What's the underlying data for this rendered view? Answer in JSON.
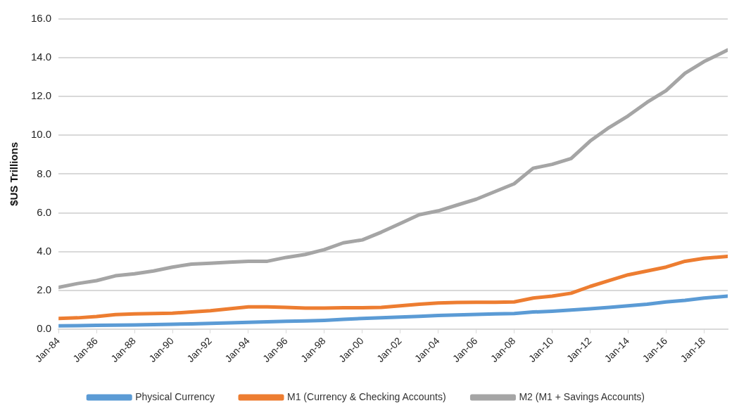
{
  "chart_data": {
    "type": "line",
    "ylabel": "$US Trillions",
    "x": [
      "1984-01",
      "1985-01",
      "1986-01",
      "1987-01",
      "1988-01",
      "1989-01",
      "1990-01",
      "1991-01",
      "1992-01",
      "1993-01",
      "1994-01",
      "1995-01",
      "1996-01",
      "1997-01",
      "1998-01",
      "1999-01",
      "2000-01",
      "2001-01",
      "2002-01",
      "2003-01",
      "2004-01",
      "2005-01",
      "2006-01",
      "2007-01",
      "2008-01",
      "2009-01",
      "2010-01",
      "2011-01",
      "2012-01",
      "2013-01",
      "2014-01",
      "2015-01",
      "2016-01",
      "2017-01",
      "2018-01",
      "2019-04"
    ],
    "series": [
      {
        "name": "Physical Currency",
        "color": "#5b9bd5",
        "values": [
          0.17,
          0.18,
          0.19,
          0.2,
          0.21,
          0.23,
          0.25,
          0.27,
          0.29,
          0.32,
          0.35,
          0.38,
          0.4,
          0.42,
          0.45,
          0.5,
          0.55,
          0.58,
          0.62,
          0.66,
          0.7,
          0.73,
          0.76,
          0.78,
          0.8,
          0.88,
          0.92,
          0.98,
          1.05,
          1.12,
          1.2,
          1.28,
          1.4,
          1.48,
          1.6,
          1.7
        ]
      },
      {
        "name": "M1 (Currency & Checking Accounts)",
        "color": "#ed7d31",
        "values": [
          0.55,
          0.58,
          0.65,
          0.75,
          0.78,
          0.8,
          0.82,
          0.88,
          0.95,
          1.05,
          1.15,
          1.15,
          1.12,
          1.08,
          1.08,
          1.1,
          1.1,
          1.12,
          1.2,
          1.28,
          1.35,
          1.37,
          1.38,
          1.38,
          1.4,
          1.6,
          1.7,
          1.85,
          2.2,
          2.5,
          2.8,
          3.0,
          3.2,
          3.5,
          3.65,
          3.75
        ]
      },
      {
        "name": "M2 (M1 + Savings Accounts)",
        "color": "#a5a5a5",
        "values": [
          2.15,
          2.35,
          2.5,
          2.75,
          2.85,
          3.0,
          3.2,
          3.35,
          3.4,
          3.45,
          3.5,
          3.5,
          3.7,
          3.85,
          4.1,
          4.45,
          4.6,
          5.0,
          5.45,
          5.9,
          6.1,
          6.4,
          6.7,
          7.1,
          7.5,
          8.3,
          8.5,
          8.8,
          9.7,
          10.4,
          11.0,
          11.7,
          12.3,
          13.2,
          13.8,
          14.4
        ]
      }
    ],
    "xlim": [
      "1984-01",
      "2019-04"
    ],
    "xticks": [
      {
        "value": "1984-01",
        "label": "Jan-84"
      },
      {
        "value": "1986-01",
        "label": "Jan-86"
      },
      {
        "value": "1988-01",
        "label": "Jan-88"
      },
      {
        "value": "1990-01",
        "label": "Jan-90"
      },
      {
        "value": "1992-01",
        "label": "Jan-92"
      },
      {
        "value": "1994-01",
        "label": "Jan-94"
      },
      {
        "value": "1996-01",
        "label": "Jan-96"
      },
      {
        "value": "1998-01",
        "label": "Jan-98"
      },
      {
        "value": "2000-01",
        "label": "Jan-00"
      },
      {
        "value": "2002-01",
        "label": "Jan-02"
      },
      {
        "value": "2004-01",
        "label": "Jan-04"
      },
      {
        "value": "2006-01",
        "label": "Jan-06"
      },
      {
        "value": "2008-01",
        "label": "Jan-08"
      },
      {
        "value": "2010-01",
        "label": "Jan-10"
      },
      {
        "value": "2012-01",
        "label": "Jan-12"
      },
      {
        "value": "2014-01",
        "label": "Jan-14"
      },
      {
        "value": "2016-01",
        "label": "Jan-16"
      },
      {
        "value": "2018-01",
        "label": "Jan-18"
      }
    ],
    "ylim": [
      0,
      16
    ],
    "yticks": [
      {
        "value": 0,
        "label": "0.0"
      },
      {
        "value": 2,
        "label": "2.0"
      },
      {
        "value": 4,
        "label": "4.0"
      },
      {
        "value": 6,
        "label": "6.0"
      },
      {
        "value": 8,
        "label": "8.0"
      },
      {
        "value": 10,
        "label": "10.0"
      },
      {
        "value": 12,
        "label": "12.0"
      },
      {
        "value": 14,
        "label": "14.0"
      },
      {
        "value": 16,
        "label": "16.0"
      }
    ],
    "grid": "y",
    "legend": "bottom",
    "marker": "none",
    "line_style": "solid"
  }
}
